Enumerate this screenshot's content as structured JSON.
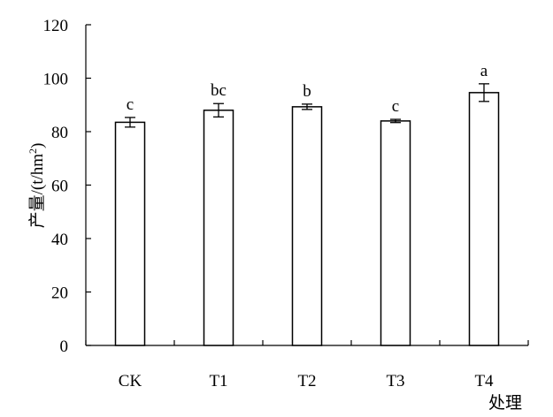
{
  "chart_data": {
    "type": "bar",
    "categories": [
      "CK",
      "T1",
      "T2",
      "T3",
      "T4"
    ],
    "values": [
      83.5,
      88.0,
      89.3,
      84.0,
      94.6
    ],
    "errors": [
      1.8,
      2.5,
      1.0,
      0.6,
      3.3
    ],
    "significance": [
      "c",
      "bc",
      "b",
      "c",
      "a"
    ],
    "ylabel_prefix": "产量/(t/hm",
    "ylabel_sup": "2",
    "ylabel_suffix": ")",
    "xlabel": "处理",
    "ylim": [
      0,
      120
    ],
    "yticks": [
      "0",
      "20",
      "40",
      "60",
      "80",
      "100",
      "120"
    ],
    "ytick_values": [
      0,
      20,
      40,
      60,
      80,
      100,
      120
    ],
    "grid": false,
    "colors": {
      "bar_fill": "#ffffff",
      "bar_stroke": "#000000",
      "axis": "#000000"
    }
  }
}
